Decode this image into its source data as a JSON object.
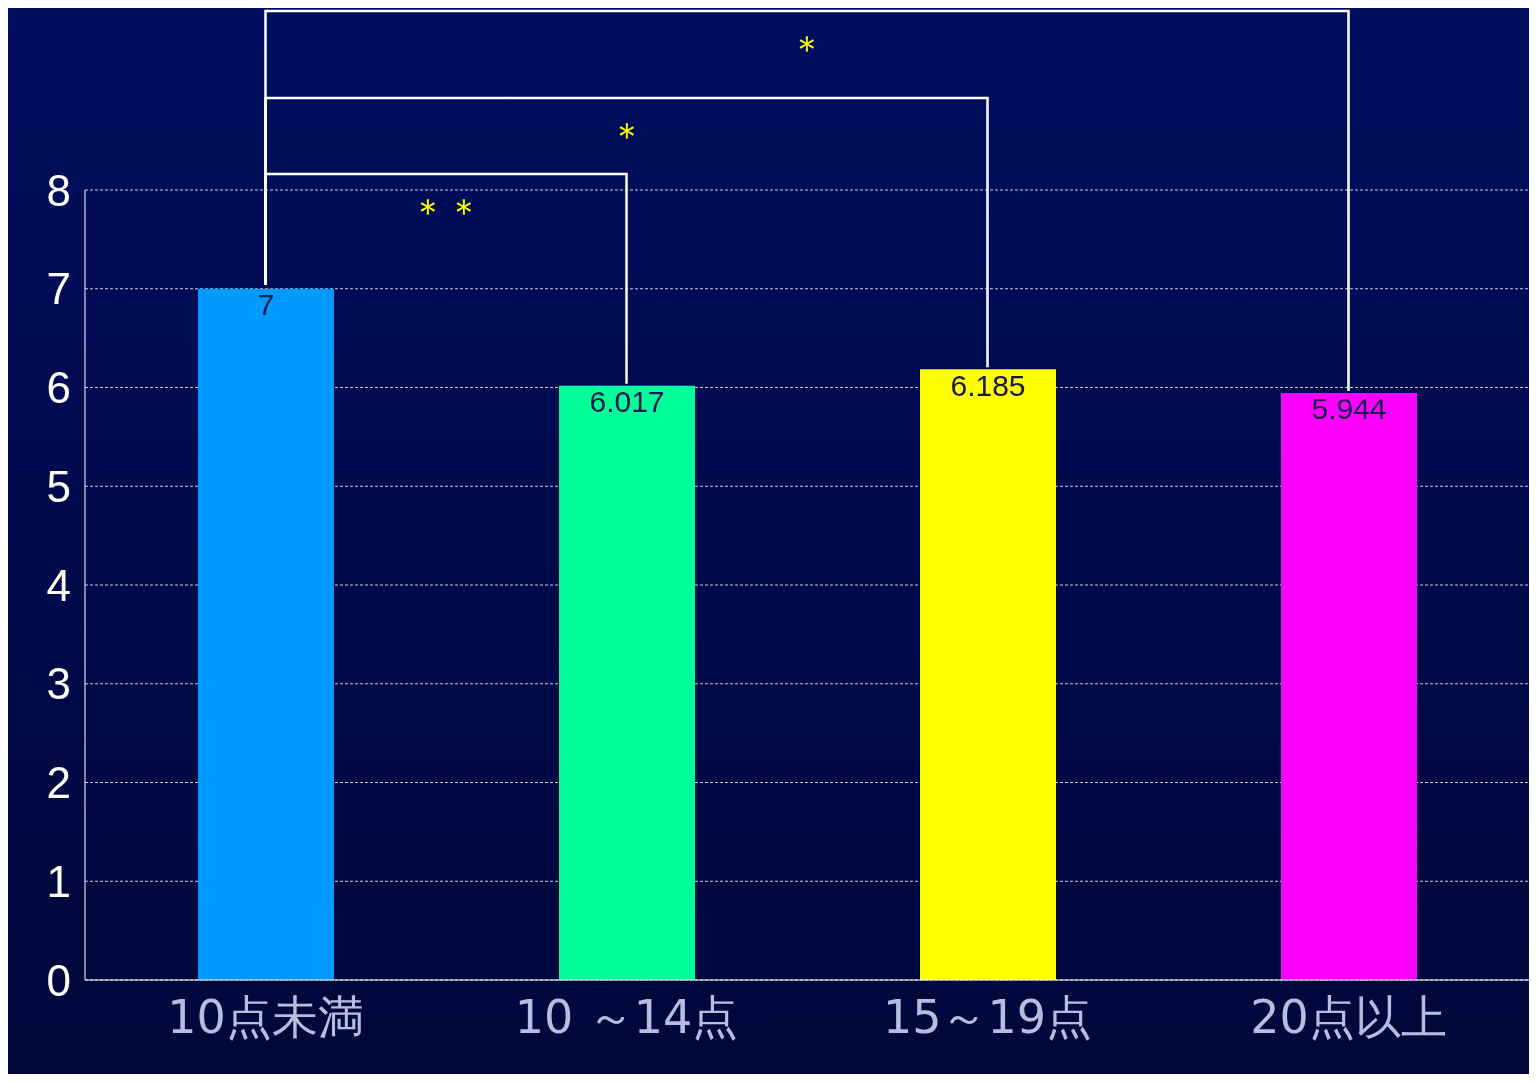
{
  "chart_data": {
    "type": "bar",
    "categories": [
      "10点未満",
      "10 ～14点",
      "15～19点",
      "20点以上"
    ],
    "values": [
      7,
      6.017,
      6.185,
      5.944
    ],
    "colors": [
      "#0099ff",
      "#00ff99",
      "#ffff00",
      "#ff00ff"
    ],
    "ylim": [
      0,
      8
    ],
    "yticks": [
      0,
      1,
      2,
      3,
      4,
      5,
      6,
      7,
      8
    ],
    "grid": "y",
    "data_labels": true,
    "annotations": [
      "＊＊",
      "＊",
      "＊"
    ]
  }
}
